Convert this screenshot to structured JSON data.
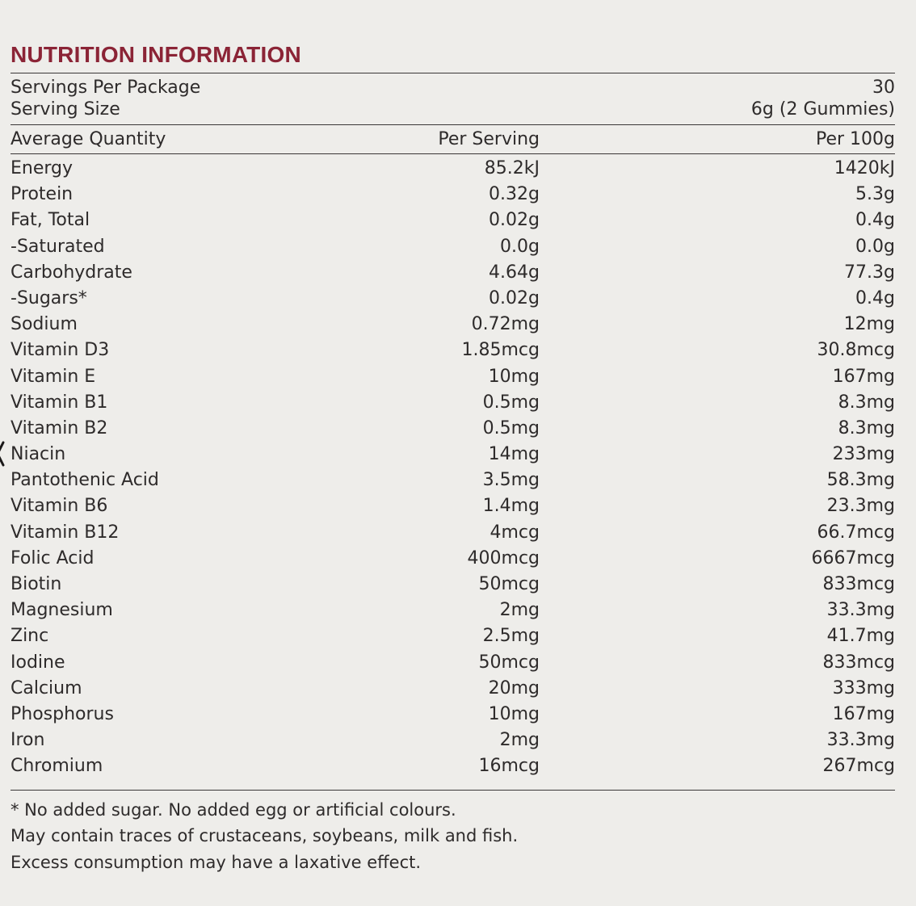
{
  "title": "NUTRITION INFORMATION",
  "servings": {
    "per_package_label": "Servings Per Package",
    "per_package_value": "30",
    "size_label": "Serving Size",
    "size_value": "6g (2 Gummies)"
  },
  "header": {
    "quantity": "Average Quantity",
    "per_serving": "Per Serving",
    "per_100g": "Per 100g"
  },
  "rows": [
    {
      "name": "Energy",
      "serving": "85.2kJ",
      "per100": "1420kJ"
    },
    {
      "name": "Protein",
      "serving": "0.32g",
      "per100": "5.3g"
    },
    {
      "name": "Fat, Total",
      "serving": "0.02g",
      "per100": "0.4g"
    },
    {
      "name": "-Saturated",
      "serving": "0.0g",
      "per100": "0.0g"
    },
    {
      "name": "Carbohydrate",
      "serving": "4.64g",
      "per100": "77.3g"
    },
    {
      "name": "-Sugars*",
      "serving": "0.02g",
      "per100": "0.4g"
    },
    {
      "name": "Sodium",
      "serving": "0.72mg",
      "per100": "12mg"
    },
    {
      "name": "Vitamin D3",
      "serving": "1.85mcg",
      "per100": "30.8mcg"
    },
    {
      "name": "Vitamin E",
      "serving": "10mg",
      "per100": "167mg"
    },
    {
      "name": "Vitamin B1",
      "serving": "0.5mg",
      "per100": "8.3mg"
    },
    {
      "name": "Vitamin B2",
      "serving": "0.5mg",
      "per100": "8.3mg"
    },
    {
      "name": "Niacin",
      "serving": "14mg",
      "per100": "233mg"
    },
    {
      "name": "Pantothenic Acid",
      "serving": "3.5mg",
      "per100": "58.3mg"
    },
    {
      "name": "Vitamin B6",
      "serving": "1.4mg",
      "per100": "23.3mg"
    },
    {
      "name": "Vitamin B12",
      "serving": "4mcg",
      "per100": "66.7mcg"
    },
    {
      "name": "Folic Acid",
      "serving": "400mcg",
      "per100": "6667mcg"
    },
    {
      "name": "Biotin",
      "serving": "50mcg",
      "per100": "833mcg"
    },
    {
      "name": "Magnesium",
      "serving": "2mg",
      "per100": "33.3mg"
    },
    {
      "name": "Zinc",
      "serving": "2.5mg",
      "per100": "41.7mg"
    },
    {
      "name": "Iodine",
      "serving": "50mcg",
      "per100": "833mcg"
    },
    {
      "name": "Calcium",
      "serving": "20mg",
      "per100": "333mg"
    },
    {
      "name": "Phosphorus",
      "serving": "10mg",
      "per100": "167mg"
    },
    {
      "name": "Iron",
      "serving": "2mg",
      "per100": "33.3mg"
    },
    {
      "name": "Chromium",
      "serving": "16mcg",
      "per100": "267mcg"
    }
  ],
  "notes": [
    "* No added sugar. No added egg or artificial colours.",
    "May contain traces of crustaceans, soybeans, milk and fish.",
    "Excess consumption may have a laxative effect."
  ],
  "colors": {
    "title": "#8b2436",
    "text": "#2e2b2b",
    "background": "#eeedea",
    "rule": "#3a3737"
  },
  "icons": {
    "edge_mark": "chevron-left-icon"
  }
}
